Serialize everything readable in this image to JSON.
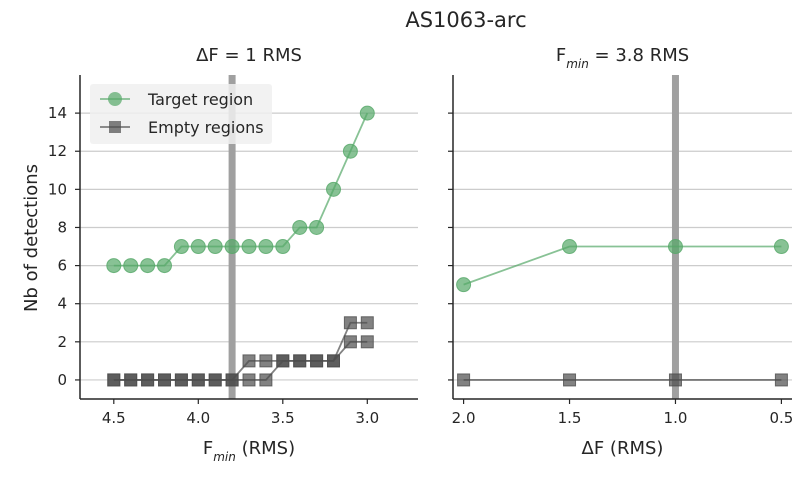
{
  "figure": {
    "title": "AS1063-arc",
    "ylabel": "Nb of detections"
  },
  "colors": {
    "target": "#55a868",
    "empty": "#4d4d4d",
    "vline": "#a0a0a0",
    "grid": "#cccccc",
    "axis": "#262626"
  },
  "legend": {
    "placement": "top-left",
    "target_label": "Target region",
    "empty_label": "Empty regions"
  },
  "chart_data": [
    {
      "type": "line",
      "title_prefix": "ΔF = 1 RMS",
      "title_sub": "",
      "title_suffix": "",
      "xlabel_main": "F",
      "xlabel_sub": "min",
      "xlabel_rest": " (RMS)",
      "xlim": [
        4.7,
        2.7
      ],
      "ylim": [
        -1,
        16
      ],
      "x_inverted": true,
      "xticks": [
        4.5,
        4.0,
        3.5,
        3.0
      ],
      "xtick_labels": [
        "4.5",
        "4.0",
        "3.5",
        "3.0"
      ],
      "yticks": [
        0,
        2,
        4,
        6,
        8,
        10,
        12,
        14
      ],
      "ytick_labels": [
        "0",
        "2",
        "4",
        "6",
        "8",
        "10",
        "12",
        "14"
      ],
      "grid": "y",
      "vline": 3.8,
      "series": [
        {
          "name": "Target region",
          "marker": "circle",
          "x": [
            4.5,
            4.4,
            4.3,
            4.2,
            4.1,
            4.0,
            3.9,
            3.8,
            3.7,
            3.6,
            3.5,
            3.4,
            3.3,
            3.2,
            3.1,
            3.0
          ],
          "y": [
            6,
            6,
            6,
            6,
            7,
            7,
            7,
            7,
            7,
            7,
            7,
            8,
            8,
            10,
            12,
            14
          ]
        },
        {
          "name": "Empty regions",
          "marker": "square",
          "x": [
            4.5,
            4.4,
            4.3,
            4.2,
            4.1,
            4.0,
            3.9,
            3.8,
            3.7,
            3.6,
            3.5,
            3.4,
            3.3,
            3.2,
            3.1,
            3.0
          ],
          "y": [
            0,
            0,
            0,
            0,
            0,
            0,
            0,
            0,
            1,
            1,
            1,
            1,
            1,
            1,
            3,
            3
          ]
        },
        {
          "name": "Empty regions",
          "marker": "square",
          "x": [
            4.5,
            4.4,
            4.3,
            4.2,
            4.1,
            4.0,
            3.9,
            3.8,
            3.7,
            3.6,
            3.5,
            3.4,
            3.3,
            3.2,
            3.1,
            3.0
          ],
          "y": [
            0,
            0,
            0,
            0,
            0,
            0,
            0,
            0,
            0,
            0,
            1,
            1,
            1,
            1,
            2,
            2
          ]
        }
      ]
    },
    {
      "type": "line",
      "title_prefix": "F",
      "title_sub": "min",
      "title_suffix": " = 3.8 RMS",
      "xlabel_main": "ΔF (RMS)",
      "xlabel_sub": "",
      "xlabel_rest": "",
      "xlim": [
        2.05,
        0.45
      ],
      "ylim": [
        -1,
        16
      ],
      "x_inverted": true,
      "xticks": [
        2.0,
        1.5,
        1.0,
        0.5
      ],
      "xtick_labels": [
        "2.0",
        "1.5",
        "1.0",
        "0.5"
      ],
      "yticks": [
        0,
        2,
        4,
        6,
        8,
        10,
        12,
        14
      ],
      "ytick_labels": [
        "",
        "",
        "",
        "",
        "",
        "",
        "",
        ""
      ],
      "grid": "y",
      "vline": 1.0,
      "series": [
        {
          "name": "Target region",
          "marker": "circle",
          "x": [
            2.0,
            1.5,
            1.0,
            0.5
          ],
          "y": [
            5,
            7,
            7,
            7
          ]
        },
        {
          "name": "Empty regions",
          "marker": "square",
          "x": [
            2.0,
            1.5,
            1.0,
            0.5
          ],
          "y": [
            0,
            0,
            0,
            0
          ]
        }
      ]
    }
  ]
}
